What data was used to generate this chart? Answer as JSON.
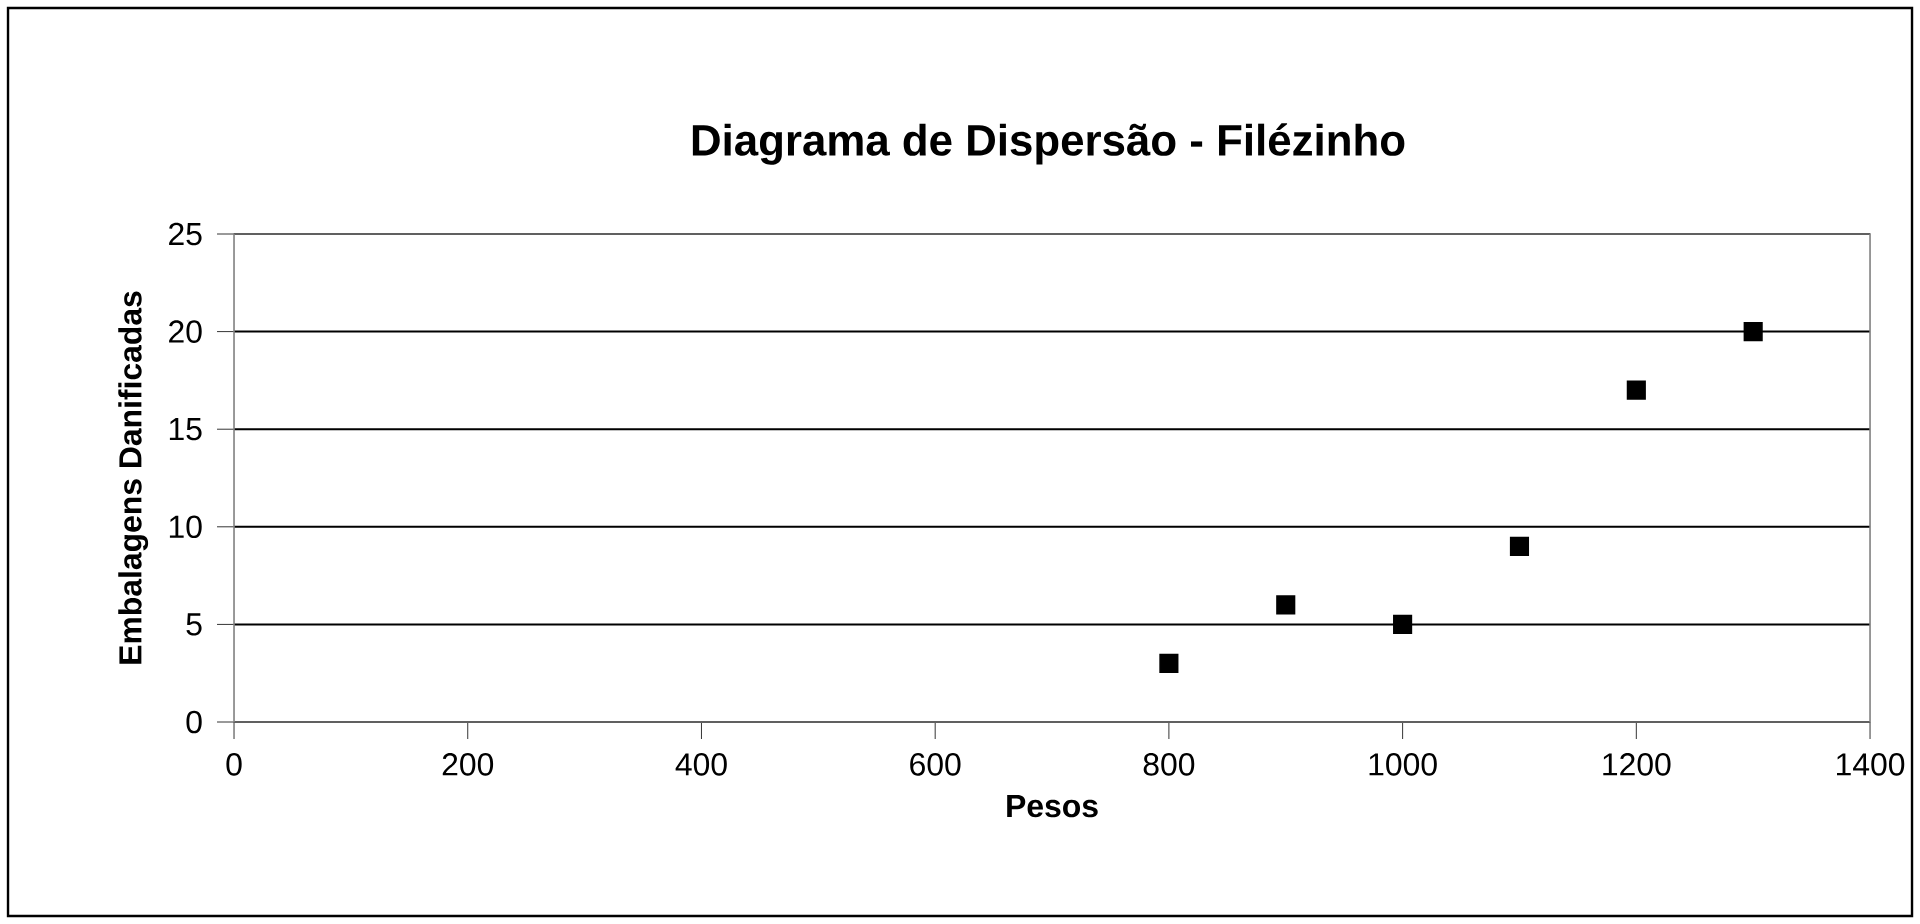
{
  "chart_data": {
    "type": "scatter",
    "title": "Diagrama de Dispersão - Filézinho",
    "xlabel": "Pesos",
    "ylabel": "Embalagens Danificadas",
    "x": [
      800,
      900,
      1000,
      1100,
      1200,
      1300
    ],
    "series": [
      {
        "color": "#000000",
        "values": [
          3,
          6,
          5,
          9,
          17,
          20
        ]
      }
    ],
    "xlim": [
      0,
      1400
    ],
    "xticks": [
      0,
      200,
      400,
      600,
      800,
      1000,
      1200,
      1400
    ],
    "ylim": [
      0,
      25
    ],
    "yticks": [
      0,
      5,
      10,
      15,
      20,
      25
    ],
    "grid": "y",
    "marker": "square"
  }
}
